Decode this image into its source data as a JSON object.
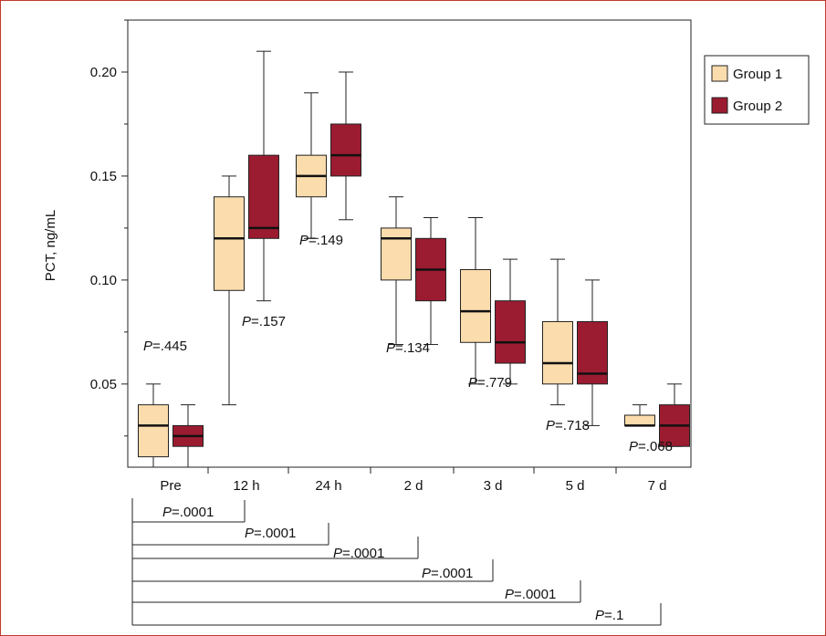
{
  "chart_data": {
    "type": "box",
    "title": "",
    "xlabel": "",
    "ylabel": "PCT, ng/mL",
    "ylim": [
      0.01,
      0.225
    ],
    "yticks": [
      0.05,
      0.1,
      0.15,
      0.2
    ],
    "ytick_labels": [
      "0.05",
      "0.10",
      "0.15",
      "0.20"
    ],
    "categories": [
      "Pre",
      "12 h",
      "24 h",
      "2 d",
      "3 d",
      "5 d",
      "7 d"
    ],
    "legend": {
      "position": "right",
      "entries": [
        "Group 1",
        "Group 2"
      ]
    },
    "colors": {
      "Group 1": "#fbdcad",
      "Group 2": "#9b1b30"
    },
    "series": [
      {
        "name": "Group 1",
        "boxes": [
          {
            "min": 0.01,
            "q1": 0.015,
            "median": 0.03,
            "q3": 0.04,
            "max": 0.05
          },
          {
            "min": 0.04,
            "q1": 0.095,
            "median": 0.12,
            "q3": 0.14,
            "max": 0.15
          },
          {
            "min": 0.12,
            "q1": 0.14,
            "median": 0.15,
            "q3": 0.16,
            "max": 0.19
          },
          {
            "min": 0.069,
            "q1": 0.1,
            "median": 0.12,
            "q3": 0.125,
            "max": 0.14
          },
          {
            "min": 0.05,
            "q1": 0.07,
            "median": 0.085,
            "q3": 0.105,
            "max": 0.13
          },
          {
            "min": 0.04,
            "q1": 0.05,
            "median": 0.06,
            "q3": 0.08,
            "max": 0.11
          },
          {
            "min": 0.03,
            "q1": 0.03,
            "median": 0.03,
            "q3": 0.035,
            "max": 0.04
          }
        ]
      },
      {
        "name": "Group 2",
        "boxes": [
          {
            "min": 0.01,
            "q1": 0.02,
            "median": 0.025,
            "q3": 0.03,
            "max": 0.04
          },
          {
            "min": 0.09,
            "q1": 0.12,
            "median": 0.125,
            "q3": 0.16,
            "max": 0.21
          },
          {
            "min": 0.129,
            "q1": 0.15,
            "median": 0.16,
            "q3": 0.175,
            "max": 0.2
          },
          {
            "min": 0.069,
            "q1": 0.09,
            "median": 0.105,
            "q3": 0.12,
            "max": 0.13
          },
          {
            "min": 0.05,
            "q1": 0.06,
            "median": 0.07,
            "q3": 0.09,
            "max": 0.11
          },
          {
            "min": 0.03,
            "q1": 0.05,
            "median": 0.055,
            "q3": 0.08,
            "max": 0.1
          },
          {
            "min": 0.02,
            "q1": 0.02,
            "median": 0.03,
            "q3": 0.04,
            "max": 0.05
          }
        ]
      }
    ],
    "pvalue_annotations": [
      {
        "category": "Pre",
        "prefix": "P",
        "value": "=.445"
      },
      {
        "category": "12 h",
        "prefix": "P",
        "value": "=.157"
      },
      {
        "category": "24 h",
        "prefix": "P",
        "value": "=.149"
      },
      {
        "category": "2 d",
        "prefix": "P",
        "value": "=.134"
      },
      {
        "category": "3 d",
        "prefix": "P",
        "value": "=.779"
      },
      {
        "category": "5 d",
        "prefix": "P",
        "value": "=.718"
      },
      {
        "category": "7 d",
        "prefix": "P",
        "value": "=.068"
      }
    ],
    "comparison_brackets": [
      {
        "from": "Pre",
        "to": "12 h",
        "prefix": "P",
        "value": "=.0001"
      },
      {
        "from": "Pre",
        "to": "24 h",
        "prefix": "P",
        "value": "=.0001"
      },
      {
        "from": "Pre",
        "to": "2 d",
        "prefix": "P",
        "value": "=.0001"
      },
      {
        "from": "Pre",
        "to": "3 d",
        "prefix": "P",
        "value": "=.0001"
      },
      {
        "from": "Pre",
        "to": "5 d",
        "prefix": "P",
        "value": "=.0001"
      },
      {
        "from": "Pre",
        "to": "7 d",
        "prefix": "P",
        "value": "=.1"
      }
    ]
  }
}
